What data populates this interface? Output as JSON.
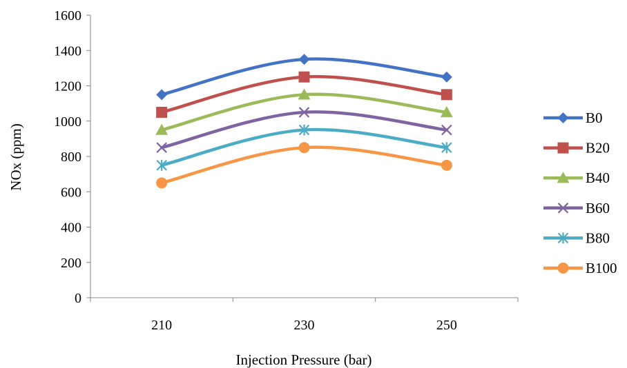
{
  "chart_data": {
    "type": "line",
    "title": "",
    "xlabel": "Injection Pressure (bar)",
    "ylabel": "NOx (ppm)",
    "categories": [
      "210",
      "230",
      "250"
    ],
    "ylim": [
      0,
      1600
    ],
    "yticks": [
      0,
      200,
      400,
      600,
      800,
      1000,
      1200,
      1400,
      1600
    ],
    "grid": false,
    "legend_position": "right",
    "smooth": true,
    "series": [
      {
        "name": "B0",
        "values": [
          1150,
          1350,
          1250
        ],
        "color": "#4472C4",
        "marker": "diamond"
      },
      {
        "name": "B20",
        "values": [
          1050,
          1250,
          1150
        ],
        "color": "#C0504D",
        "marker": "square"
      },
      {
        "name": "B40",
        "values": [
          950,
          1150,
          1050
        ],
        "color": "#9BBB59",
        "marker": "triangle"
      },
      {
        "name": "B60",
        "values": [
          850,
          1050,
          950
        ],
        "color": "#8064A2",
        "marker": "x"
      },
      {
        "name": "B80",
        "values": [
          750,
          950,
          850
        ],
        "color": "#4BACC6",
        "marker": "star"
      },
      {
        "name": "B100",
        "values": [
          650,
          850,
          750
        ],
        "color": "#F79646",
        "marker": "circle"
      }
    ]
  }
}
